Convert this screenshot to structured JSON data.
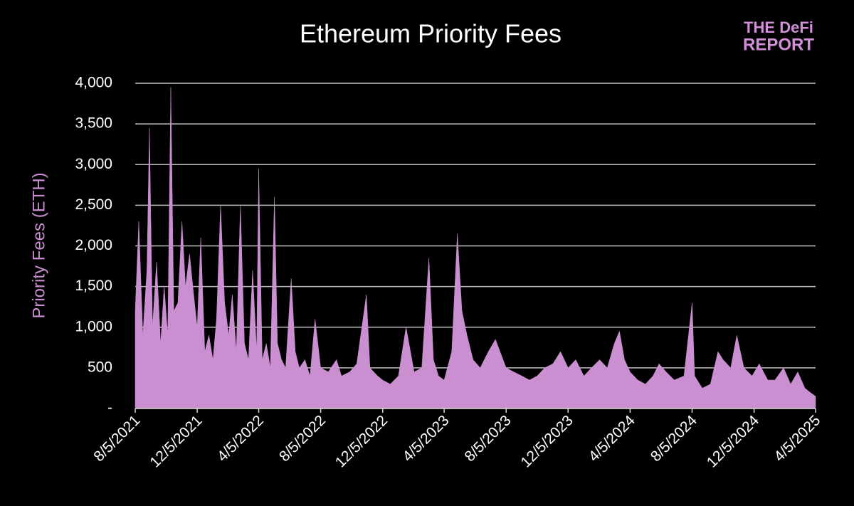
{
  "chart_data": {
    "type": "area",
    "title": "Ethereum Priority Fees",
    "logo_line1": "THE DeFi",
    "logo_line2": "REPORT",
    "y_label": "Priority Fees (ETH)",
    "color": "#c98fd0",
    "grid": true,
    "ylim": [
      0,
      4000
    ],
    "yticks": [
      {
        "value": 0,
        "label": "-"
      },
      {
        "value": 500,
        "label": "500"
      },
      {
        "value": 1000,
        "label": "1,000"
      },
      {
        "value": 1500,
        "label": "1,500"
      },
      {
        "value": 2000,
        "label": "2,000"
      },
      {
        "value": 2500,
        "label": "2,500"
      },
      {
        "value": 3000,
        "label": "3,000"
      },
      {
        "value": 3500,
        "label": "3,500"
      },
      {
        "value": 4000,
        "label": "4,000"
      }
    ],
    "xlim": [
      "8/5/2021",
      "4/5/2025"
    ],
    "xticks": [
      "8/5/2021",
      "12/5/2021",
      "4/5/2022",
      "8/5/2022",
      "12/5/2022",
      "4/5/2023",
      "8/5/2023",
      "12/5/2023",
      "4/5/2024",
      "8/5/2024",
      "12/5/2024",
      "4/5/2025"
    ],
    "x": [
      "8/5/2021",
      "8/12/2021",
      "8/20/2021",
      "8/28/2021",
      "9/2/2021",
      "9/8/2021",
      "9/16/2021",
      "9/24/2021",
      "10/1/2021",
      "10/8/2021",
      "10/14/2021",
      "10/20/2021",
      "10/28/2021",
      "11/5/2021",
      "11/12/2021",
      "11/20/2021",
      "11/28/2021",
      "12/5/2021",
      "12/12/2021",
      "12/20/2021",
      "12/28/2021",
      "1/5/2022",
      "1/12/2022",
      "1/20/2022",
      "1/28/2022",
      "2/5/2022",
      "2/12/2022",
      "2/20/2022",
      "2/28/2022",
      "3/8/2022",
      "3/16/2022",
      "3/24/2022",
      "4/1/2022",
      "4/5/2022",
      "4/12/2022",
      "4/20/2022",
      "4/28/2022",
      "5/6/2022",
      "5/12/2022",
      "5/20/2022",
      "5/28/2022",
      "6/8/2022",
      "6/16/2022",
      "6/24/2022",
      "7/5/2022",
      "7/15/2022",
      "7/25/2022",
      "8/5/2022",
      "8/20/2022",
      "9/5/2022",
      "9/15/2022",
      "10/1/2022",
      "10/15/2022",
      "11/3/2022",
      "11/10/2022",
      "11/25/2022",
      "12/5/2022",
      "12/20/2022",
      "1/5/2023",
      "1/20/2023",
      "2/5/2023",
      "2/20/2023",
      "3/6/2023",
      "3/15/2023",
      "3/25/2023",
      "4/5/2023",
      "4/20/2023",
      "4/26/2023",
      "5/1/2023",
      "5/10/2023",
      "5/20/2023",
      "6/1/2023",
      "6/15/2023",
      "7/1/2023",
      "7/15/2023",
      "8/5/2023",
      "8/20/2023",
      "9/5/2023",
      "9/20/2023",
      "10/5/2023",
      "10/20/2023",
      "11/5/2023",
      "11/20/2023",
      "12/5/2023",
      "12/20/2023",
      "1/5/2024",
      "1/20/2024",
      "2/5/2024",
      "2/20/2024",
      "3/5/2024",
      "3/15/2024",
      "3/25/2024",
      "4/5/2024",
      "4/20/2024",
      "5/5/2024",
      "5/20/2024",
      "6/1/2024",
      "6/15/2024",
      "7/1/2024",
      "7/20/2024",
      "8/5/2024",
      "8/10/2024",
      "8/25/2024",
      "9/10/2024",
      "9/25/2024",
      "10/5/2024",
      "10/20/2024",
      "11/1/2024",
      "11/15/2024",
      "12/1/2024",
      "12/15/2024",
      "1/1/2025",
      "1/15/2025",
      "2/1/2025",
      "2/15/2025",
      "3/1/2025",
      "3/15/2025",
      "3/25/2025",
      "4/5/2025"
    ],
    "values": [
      1200,
      2300,
      900,
      1700,
      3450,
      1000,
      1800,
      800,
      1500,
      900,
      3950,
      1200,
      1300,
      2300,
      1500,
      1900,
      1400,
      1000,
      2100,
      700,
      900,
      600,
      1100,
      2500,
      1300,
      900,
      1400,
      700,
      2500,
      800,
      600,
      1700,
      700,
      2950,
      600,
      800,
      500,
      2600,
      800,
      600,
      500,
      1600,
      700,
      500,
      600,
      400,
      1100,
      500,
      450,
      600,
      400,
      450,
      550,
      1400,
      500,
      400,
      350,
      300,
      400,
      1000,
      450,
      500,
      1850,
      600,
      400,
      350,
      700,
      1500,
      2150,
      1200,
      900,
      600,
      500,
      700,
      850,
      500,
      450,
      400,
      350,
      400,
      500,
      550,
      700,
      500,
      600,
      400,
      500,
      600,
      500,
      800,
      950,
      600,
      450,
      350,
      300,
      400,
      550,
      450,
      350,
      400,
      1300,
      400,
      250,
      300,
      700,
      600,
      500,
      900,
      500,
      400,
      550,
      350,
      350,
      500,
      300,
      450,
      250,
      200,
      150
    ]
  }
}
